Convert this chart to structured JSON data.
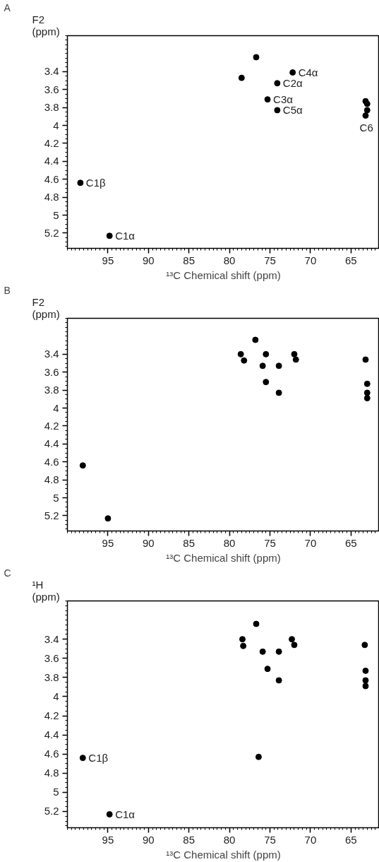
{
  "chart_data": [
    {
      "type": "scatter",
      "title": "A",
      "xlabel": "¹³C Chemical shift (ppm)",
      "ylabel": "F2 (ppm)",
      "color": "#000000",
      "marker": "circle",
      "grid": false,
      "x": [
        76.7,
        78.5,
        74.1,
        72.2,
        75.3,
        74.1,
        63.2,
        63.0,
        63.0,
        63.2,
        98.4,
        94.8
      ],
      "values": [
        3.24,
        3.47,
        3.53,
        3.41,
        3.71,
        3.83,
        3.73,
        3.76,
        3.83,
        3.89,
        4.64,
        5.23
      ],
      "xlim": [
        100,
        61.5
      ],
      "ylim": [
        5.37,
        3.0
      ],
      "xticks": [
        95,
        90,
        85,
        80,
        75,
        70,
        65
      ],
      "yticks": [
        3.4,
        3.6,
        3.8,
        4.0,
        4.2,
        4.4,
        4.6,
        4.8,
        5.0,
        5.2
      ],
      "annotations": [
        {
          "text": "C2α",
          "x": 74.1,
          "y": 3.53
        },
        {
          "text": "C4α",
          "x": 72.2,
          "y": 3.41
        },
        {
          "text": "C3α",
          "x": 75.3,
          "y": 3.71
        },
        {
          "text": "C5α",
          "x": 74.1,
          "y": 3.83
        },
        {
          "text": "C6",
          "x": 63.1,
          "y": 3.89
        },
        {
          "text": "C1β",
          "x": 98.4,
          "y": 4.64
        },
        {
          "text": "C1α",
          "x": 94.8,
          "y": 5.23
        }
      ]
    },
    {
      "type": "scatter",
      "title": "B",
      "xlabel": "¹³C Chemical shift (ppm)",
      "ylabel": "F2 (ppm)",
      "color": "#000000",
      "marker": "circle",
      "grid": false,
      "x": [
        76.8,
        78.6,
        78.2,
        75.5,
        72.0,
        71.8,
        75.9,
        73.9,
        75.5,
        73.9,
        63.2,
        63.0,
        63.0,
        63.0,
        98.1,
        95.0
      ],
      "values": [
        3.24,
        3.4,
        3.47,
        3.4,
        3.4,
        3.46,
        3.53,
        3.53,
        3.71,
        3.83,
        3.46,
        3.73,
        3.83,
        3.89,
        4.64,
        5.23
      ],
      "xlim": [
        100,
        61.5
      ],
      "ylim": [
        5.37,
        3.0
      ],
      "xticks": [
        95,
        90,
        85,
        80,
        75,
        70,
        65
      ],
      "yticks": [
        3.4,
        3.6,
        3.8,
        4.0,
        4.2,
        4.4,
        4.6,
        4.8,
        5.0,
        5.2
      ]
    },
    {
      "type": "scatter",
      "title": "C",
      "xlabel": "¹³C Chemical shift (ppm)",
      "ylabel": "¹H (ppm)",
      "color": "#000000",
      "marker": "circle",
      "grid": false,
      "x": [
        76.7,
        78.4,
        78.3,
        72.3,
        72.0,
        75.9,
        73.9,
        75.3,
        73.9,
        63.3,
        63.2,
        63.2,
        63.2,
        98.1,
        94.8,
        76.4
      ],
      "values": [
        3.24,
        3.4,
        3.47,
        3.4,
        3.46,
        3.53,
        3.53,
        3.71,
        3.83,
        3.46,
        3.73,
        3.83,
        3.89,
        4.64,
        5.23,
        4.63
      ],
      "xlim": [
        100,
        61.5
      ],
      "ylim": [
        5.37,
        3.0
      ],
      "xticks": [
        95,
        90,
        85,
        80,
        75,
        70,
        65
      ],
      "yticks": [
        3.4,
        3.6,
        3.8,
        4.0,
        4.2,
        4.4,
        4.6,
        4.8,
        5.0,
        5.2
      ],
      "annotations": [
        {
          "text": "C1β",
          "x": 98.1,
          "y": 4.64
        },
        {
          "text": "C1α",
          "x": 94.8,
          "y": 5.23
        }
      ]
    }
  ]
}
